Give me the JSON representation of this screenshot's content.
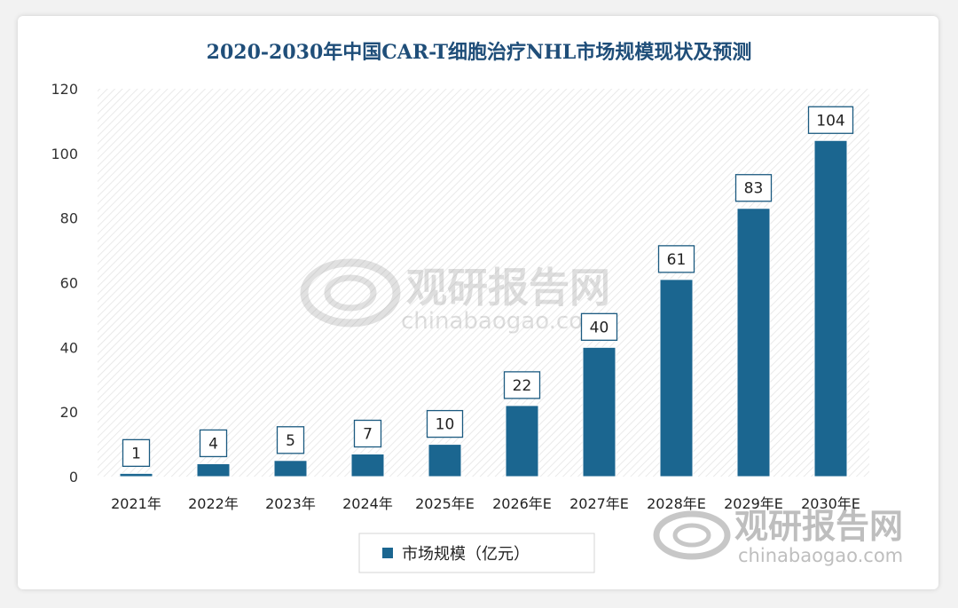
{
  "chart_data": {
    "type": "bar",
    "title": "2020-2030年中国CAR-T细胞治疗NHL市场规模现状及预测",
    "categories": [
      "2021年",
      "2022年",
      "2023年",
      "2024年",
      "2025年E",
      "2026年E",
      "2027年E",
      "2028年E",
      "2029年E",
      "2030年E"
    ],
    "series": [
      {
        "name": "市场规模（亿元）",
        "values": [
          1,
          4,
          5,
          7,
          10,
          22,
          40,
          61,
          83,
          104
        ]
      }
    ],
    "ylim": [
      0,
      120
    ],
    "yticks": [
      0,
      20,
      40,
      60,
      80,
      100,
      120
    ],
    "grid": false,
    "legend": "bottom",
    "colors": {
      "bar": "#1b6690",
      "title": "#1f4e79"
    }
  },
  "watermark": {
    "center_cn": "观研报告网",
    "center_en": "chinabaogao.com",
    "corner_cn": "观研报告网",
    "corner_en": "chinabaogao.com"
  }
}
